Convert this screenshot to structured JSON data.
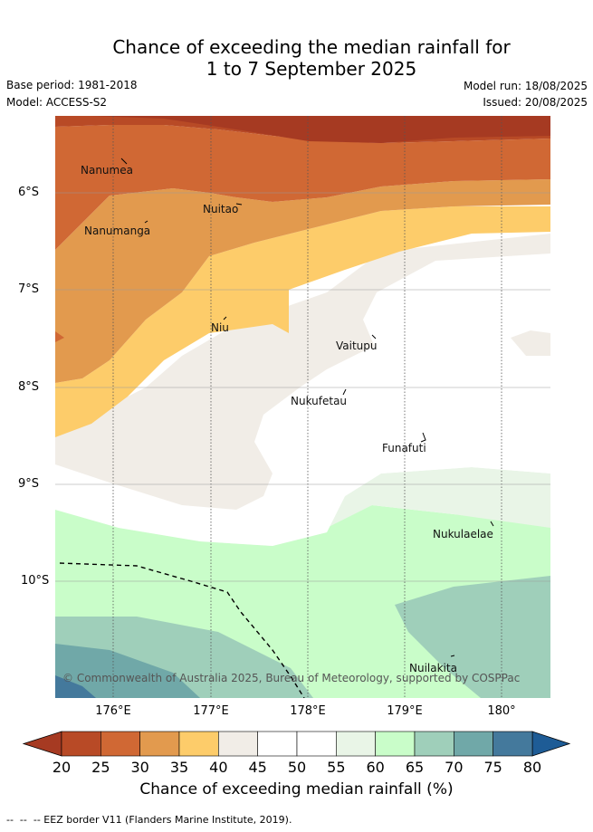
{
  "title_line1": "Chance of exceeding the median rainfall for",
  "title_line2": "1 to 7 September 2025",
  "base_period": "Base period: 1981-2018",
  "model": "Model: ACCESS-S2",
  "model_run": "Model run: 18/08/2025",
  "issued": "Issued: 20/08/2025",
  "places": [
    "Nanumea",
    "Nuitao",
    "Nanumanga",
    "Niu",
    "Vaitupu",
    "Nukufetau",
    "Funafuti",
    "Nukulaelae",
    "Nuilakita"
  ],
  "latitude_labels": [
    "6°S",
    "7°S",
    "8°S",
    "9°S",
    "10°S"
  ],
  "longitude_labels": [
    "176°E",
    "177°E",
    "178°E",
    "179°E",
    "180°"
  ],
  "copyright": "© Commonwealth of Australia 2025, Bureau of Meteorology, supported by COSPPac",
  "colorbar": {
    "ticks": [
      "20",
      "25",
      "30",
      "35",
      "40",
      "45",
      "50",
      "55",
      "60",
      "65",
      "70",
      "75",
      "80"
    ],
    "colors": [
      "#b84a26",
      "#d06834",
      "#e29a4e",
      "#fdcc6a",
      "#f1ede7",
      "#ffffff",
      "#ffffff",
      "#e9f5e7",
      "#c9fdc9",
      "#9fcfba",
      "#70a8a8",
      "#44799c"
    ],
    "under_color": "#a63a22",
    "over_color": "#1e5c96",
    "label": "Chance of exceeding median rainfall (%)"
  },
  "footnote": "--  --  -- EEZ border V11 (Flanders Marine Institute, 2019)."
}
